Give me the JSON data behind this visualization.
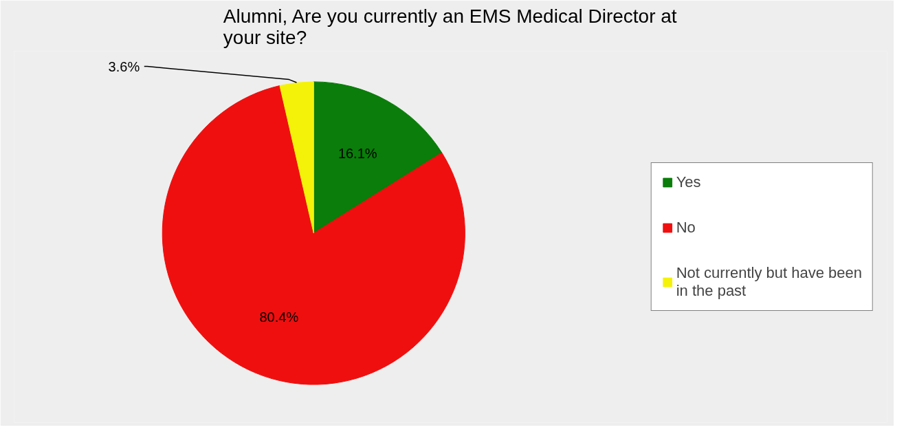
{
  "chart_data": {
    "type": "pie",
    "title": "Alumni, Are you currently an EMS Medical Director at your site?",
    "categories": [
      "Yes",
      "No",
      "Not currently but have been in the past"
    ],
    "values": [
      16.1,
      80.4,
      3.6
    ],
    "colors": [
      "#0a7d0a",
      "#f00f0f",
      "#f5f20a"
    ],
    "value_labels": [
      "16.1%",
      "80.4%",
      "3.6%"
    ],
    "legend": "right"
  }
}
